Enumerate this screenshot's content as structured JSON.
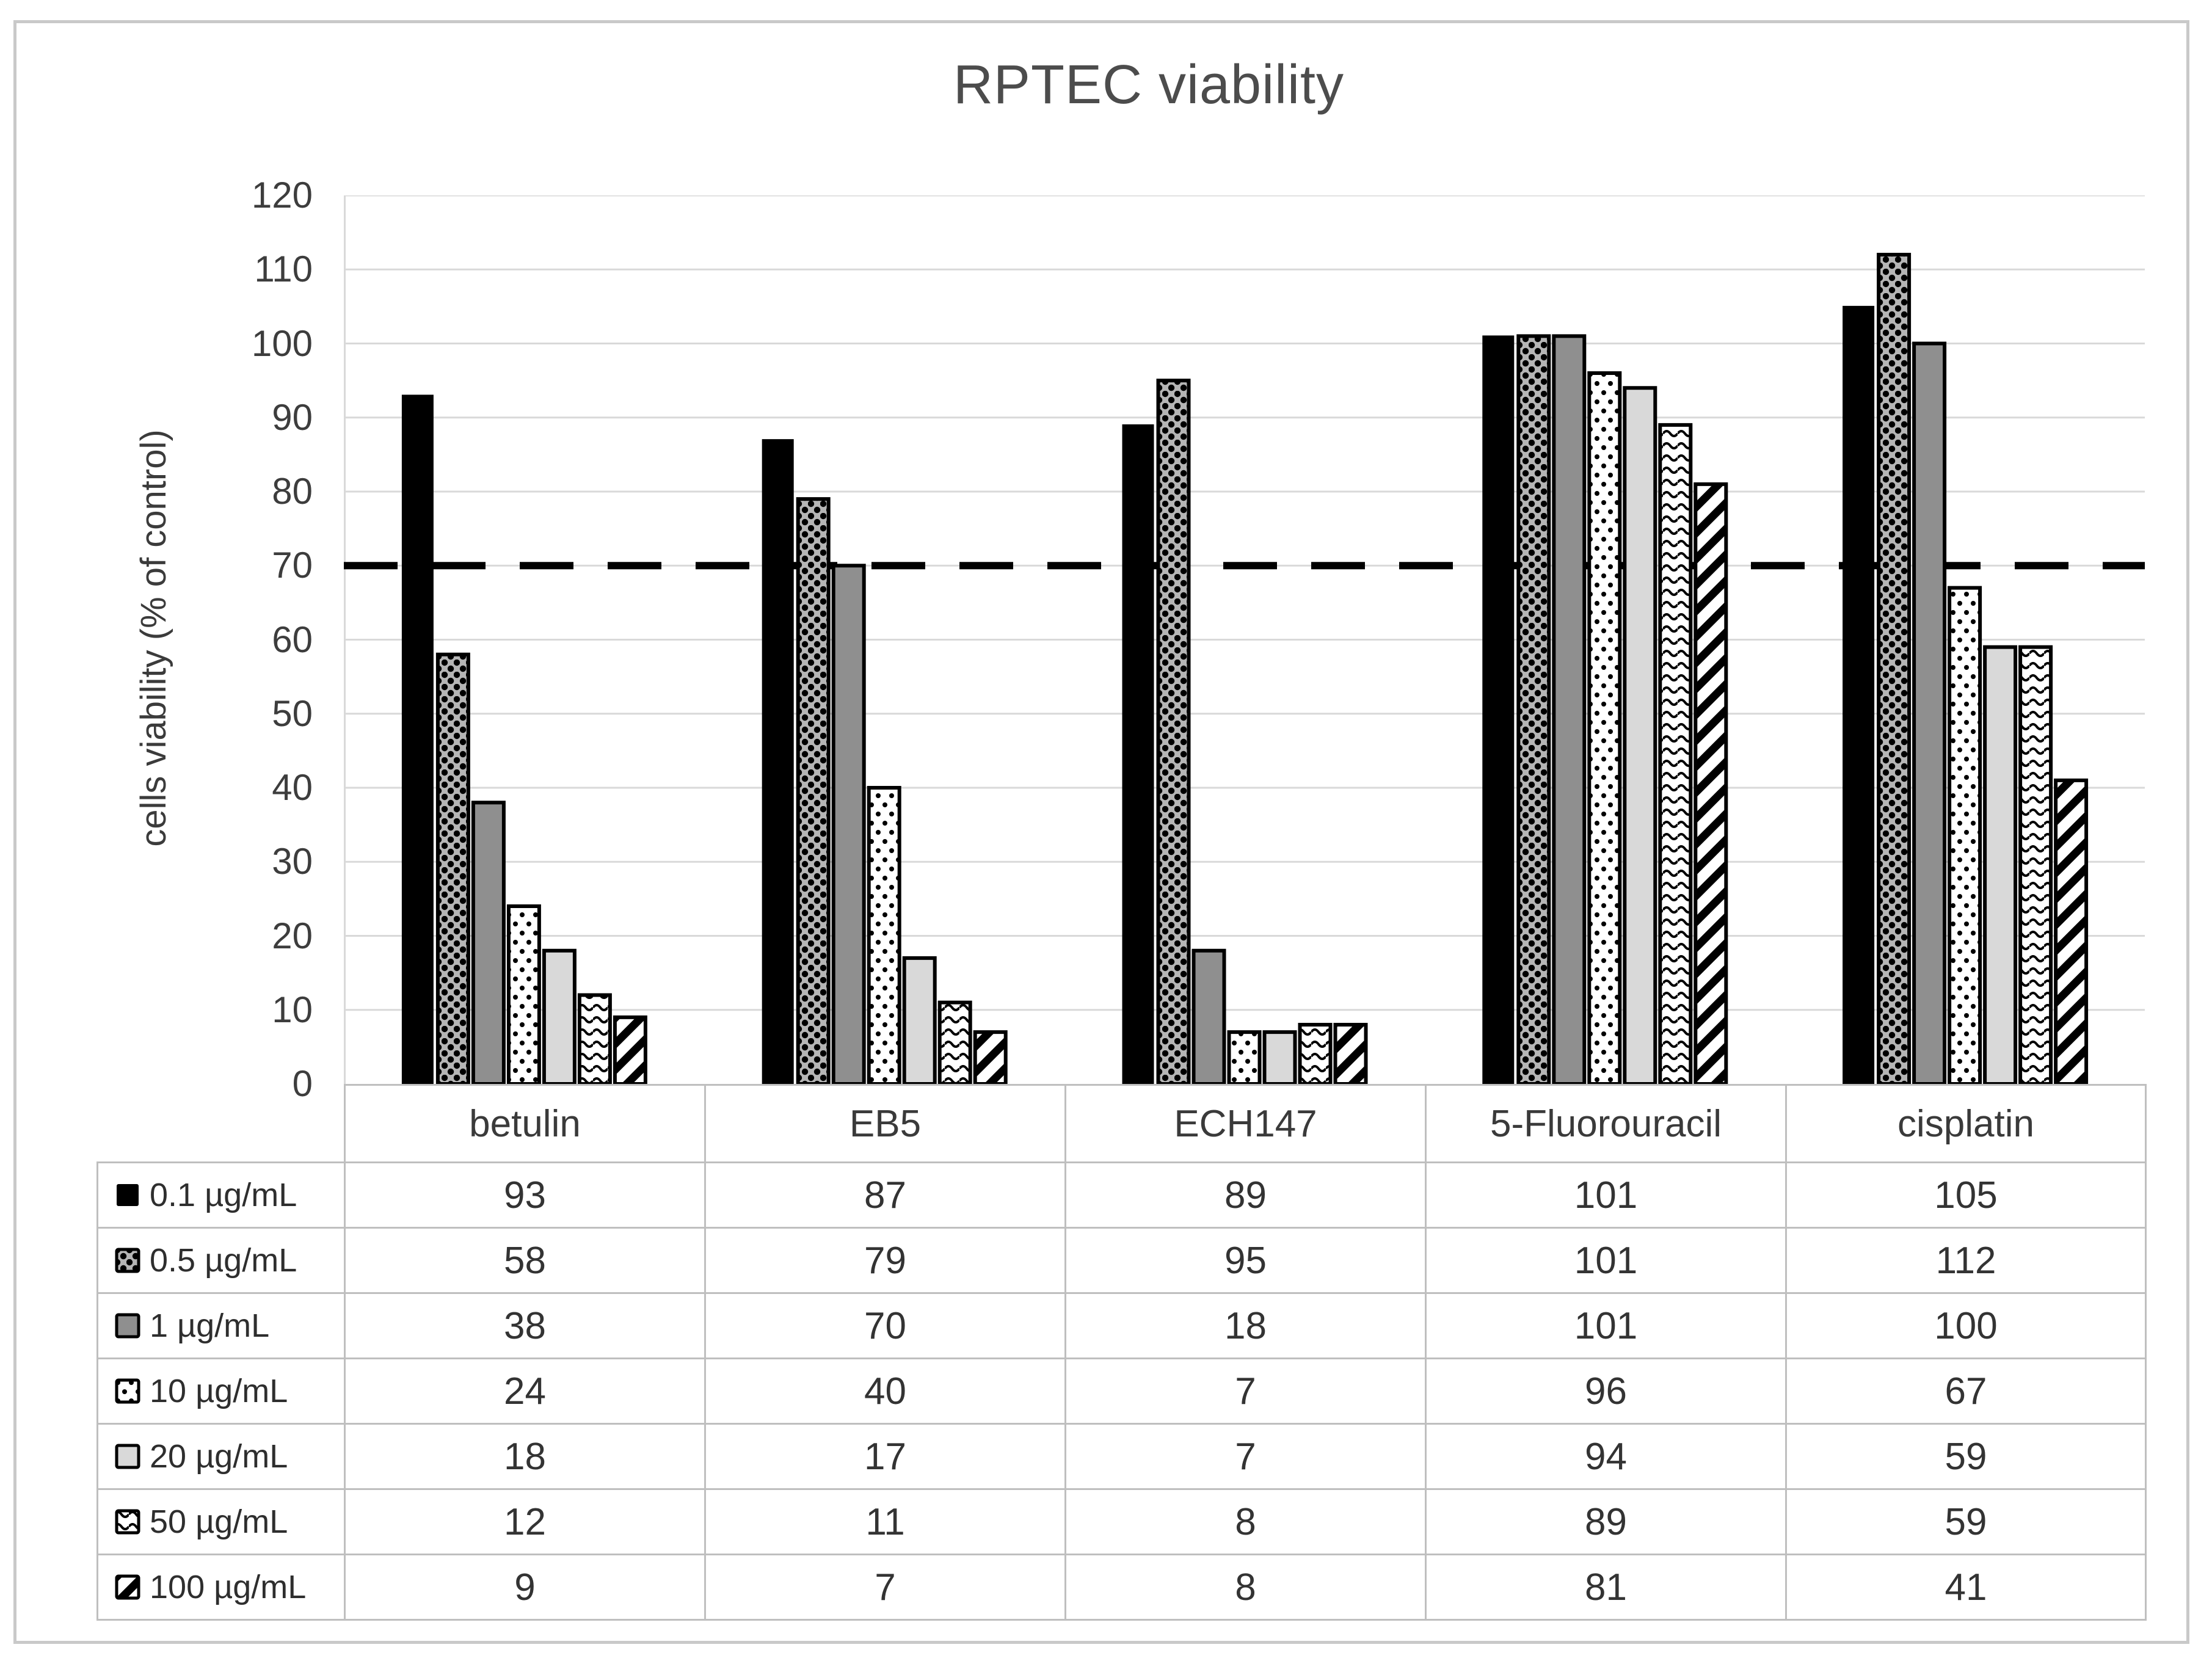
{
  "figure": {
    "title": "RPTEC viability"
  },
  "chart_data": {
    "type": "bar",
    "title": "RPTEC viability",
    "xlabel": "",
    "ylabel": "cells viability (% of control)",
    "ylim": [
      0,
      120
    ],
    "ytick_step": 10,
    "grid": "horizontal-only",
    "legend_position": "table-left-column",
    "threshold_line": {
      "value": 70,
      "style": "dashed",
      "color": "#000000"
    },
    "categories": [
      "betulin",
      "EB5",
      "ECH147",
      "5-Fluorouracil",
      "cisplatin"
    ],
    "series": [
      {
        "name": "0.1 µg/mL",
        "pattern": "solid-black",
        "values": [
          93,
          87,
          89,
          101,
          105
        ]
      },
      {
        "name": "0.5 µg/mL",
        "pattern": "dark-dotted",
        "values": [
          58,
          79,
          95,
          101,
          112
        ]
      },
      {
        "name": "1 µg/mL",
        "pattern": "dark-gray",
        "values": [
          38,
          70,
          18,
          101,
          100
        ]
      },
      {
        "name": "10 µg/mL",
        "pattern": "white-dotted",
        "values": [
          24,
          40,
          7,
          96,
          67
        ]
      },
      {
        "name": "20 µg/mL",
        "pattern": "light-gray",
        "values": [
          18,
          17,
          7,
          94,
          59
        ]
      },
      {
        "name": "50 µg/mL",
        "pattern": "wavy-lines",
        "values": [
          12,
          11,
          8,
          89,
          59
        ]
      },
      {
        "name": "100 µg/mL",
        "pattern": "diagonal-stripes",
        "values": [
          9,
          7,
          8,
          81,
          41
        ]
      }
    ]
  },
  "colors": {
    "grid_line": "#d9d9d9",
    "table_border": "#bfbfbf",
    "bar_outline": "#000000",
    "dark_gray_fill": "#8f8f8f",
    "light_gray_fill": "#d9d9d9",
    "pattern_base_gray": "#b5b5b5",
    "title_text": "#4c4c4c",
    "axis_text": "#3d3d3d",
    "table_text": "#333333",
    "frame_border": "#c9c9c9",
    "threshold": "#000000"
  }
}
